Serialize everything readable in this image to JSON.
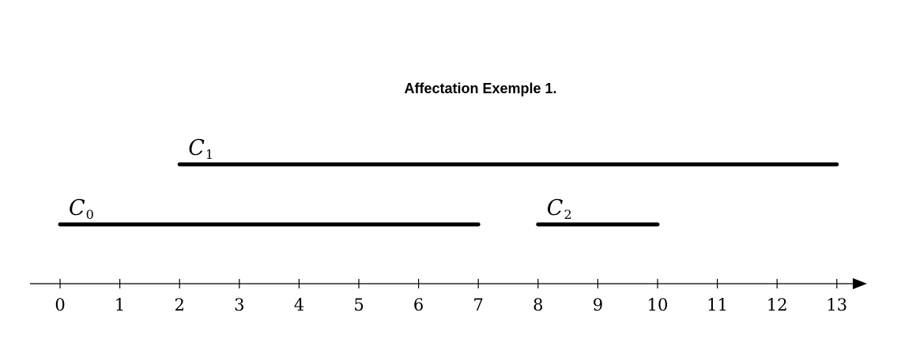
{
  "title": "Affectation Exemple 1.",
  "axis": {
    "ticks": [
      0,
      1,
      2,
      3,
      4,
      5,
      6,
      7,
      8,
      9,
      10,
      11,
      12,
      13
    ]
  },
  "intervals": [
    {
      "name": "C",
      "sub": "0",
      "start": 0,
      "end": 7,
      "row": 0
    },
    {
      "name": "C",
      "sub": "1",
      "start": 2,
      "end": 13,
      "row": 1
    },
    {
      "name": "C",
      "sub": "2",
      "start": 8,
      "end": 10,
      "row": 0
    }
  ],
  "colors": {
    "line": "#000000",
    "background": "#ffffff"
  }
}
